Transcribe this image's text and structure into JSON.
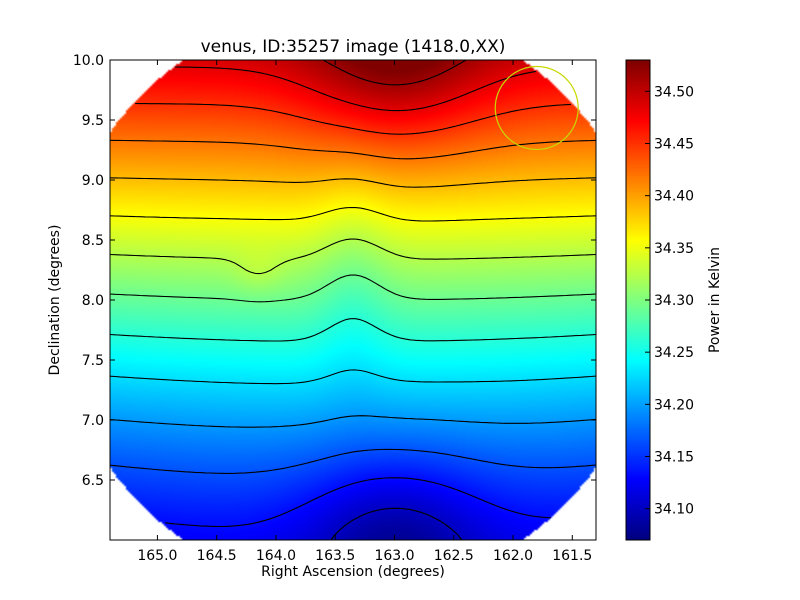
{
  "chart_data": {
    "type": "heatmap",
    "title": "venus, ID:35257 image (1418.0,XX)",
    "xlabel": "Right Ascension (degrees)",
    "ylabel": "Declination (degrees)",
    "colorbar_label": "Power in Kelvin",
    "xlim": [
      165.4,
      161.3
    ],
    "ylim": [
      6.0,
      10.0
    ],
    "x_ticks": [
      165.0,
      164.5,
      164.0,
      163.5,
      163.0,
      162.5,
      162.0,
      161.5
    ],
    "x_tick_labels": [
      "165.0",
      "164.5",
      "164.0",
      "163.5",
      "163.0",
      "162.5",
      "162.0",
      "161.5"
    ],
    "y_ticks": [
      6.5,
      7.0,
      7.5,
      8.0,
      8.5,
      9.0,
      9.5,
      10.0
    ],
    "y_tick_labels": [
      "6.5",
      "7.0",
      "7.5",
      "8.0",
      "8.5",
      "9.0",
      "9.5",
      "10.0"
    ],
    "colorbar_range": [
      34.07,
      34.53
    ],
    "colorbar_ticks": [
      34.1,
      34.15,
      34.2,
      34.25,
      34.3,
      34.35,
      34.4,
      34.45,
      34.5
    ],
    "colorbar_tick_labels": [
      "34.10",
      "34.15",
      "34.20",
      "34.25",
      "34.30",
      "34.35",
      "34.40",
      "34.45",
      "34.50"
    ],
    "colormap": "jet",
    "contour_color": "#000000",
    "field_features": {
      "maximum": {
        "ra": 163.0,
        "dec": 9.95,
        "value": 34.53
      },
      "minimum": {
        "ra": 163.0,
        "dec": 6.05,
        "value": 34.07
      },
      "local_peak": {
        "ra": 164.15,
        "dec": 8.23,
        "value": 34.24
      }
    },
    "circle_marker": {
      "ra": 161.8,
      "dec": 9.6,
      "radius_deg": 0.35,
      "color": "#c8d800"
    },
    "grid": false
  }
}
